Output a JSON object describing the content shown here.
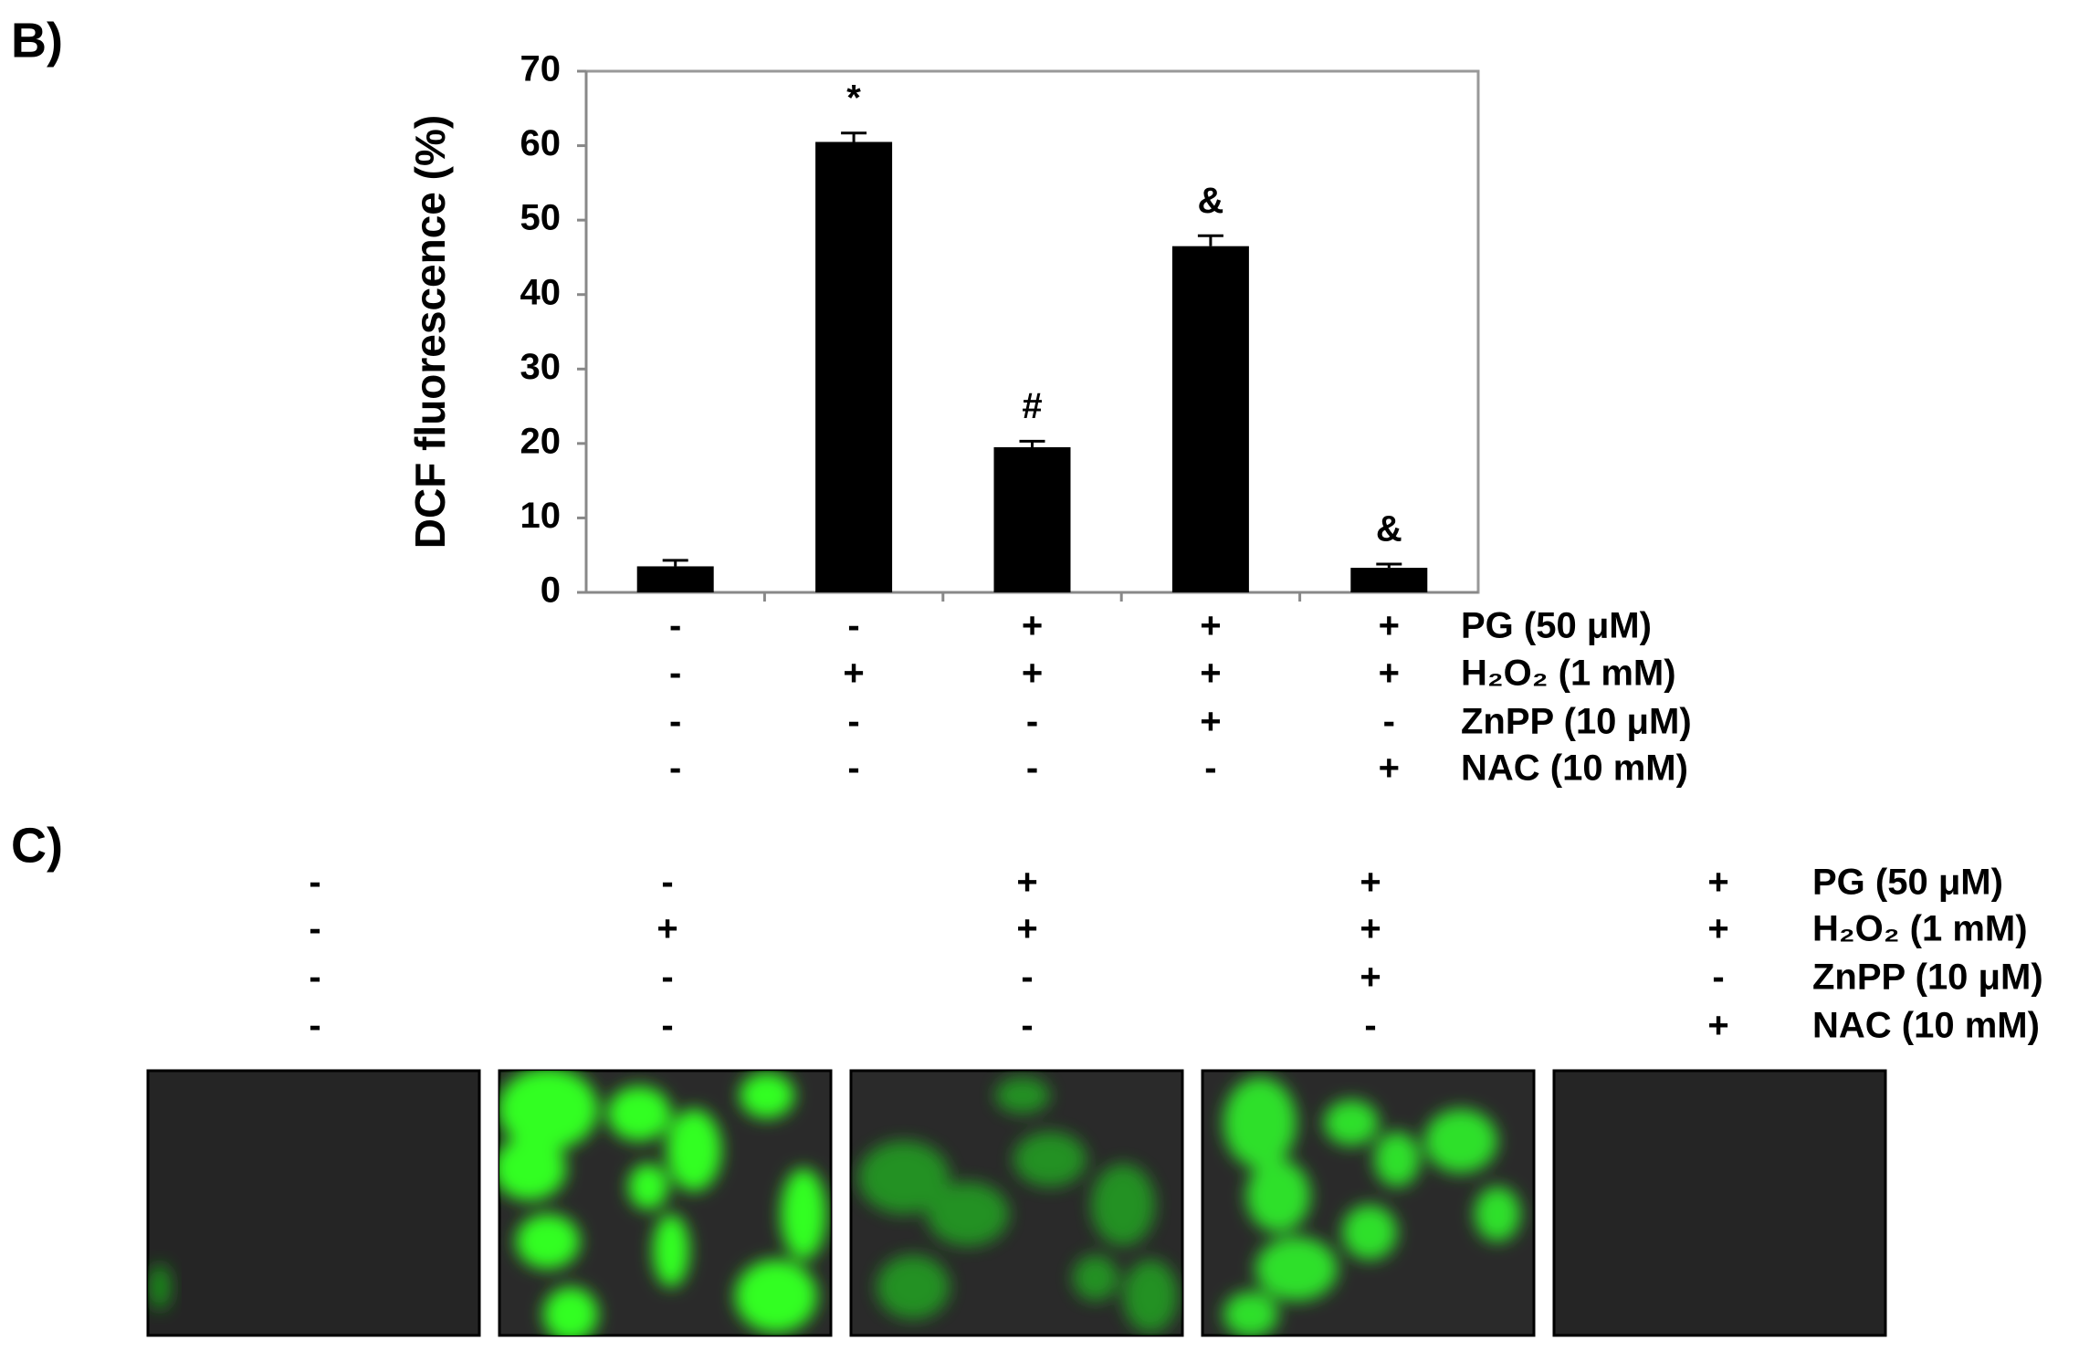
{
  "panel_labels": [
    "B)",
    "C)"
  ],
  "chart_data": {
    "type": "bar",
    "y_label": "DCF fluorescence (%)",
    "categories": [
      null,
      null,
      null,
      null,
      null
    ],
    "values": [
      3.5,
      60.5,
      19.5,
      46.5,
      3.3
    ],
    "errors": [
      0.8,
      1.2,
      0.8,
      1.4,
      0.5
    ],
    "annotations": [
      null,
      "*",
      "#",
      "&",
      "&"
    ],
    "color": "#000000",
    "ylim": [
      0,
      70
    ],
    "yticks": [
      0,
      10,
      20,
      30,
      40,
      50,
      60,
      70
    ]
  },
  "treatments": [
    {
      "label": "PG (50 μM)",
      "signs": [
        "-",
        "-",
        "+",
        "+",
        "+"
      ]
    },
    {
      "label": "H₂O₂ (1 mM)",
      "signs": [
        "-",
        "+",
        "+",
        "+",
        "+"
      ]
    },
    {
      "label": "ZnPP (10 μM)",
      "signs": [
        "-",
        "-",
        "-",
        "+",
        "-"
      ]
    },
    {
      "label": "NAC (10 mM)",
      "signs": [
        "-",
        "-",
        "-",
        "-",
        "+"
      ]
    }
  ]
}
